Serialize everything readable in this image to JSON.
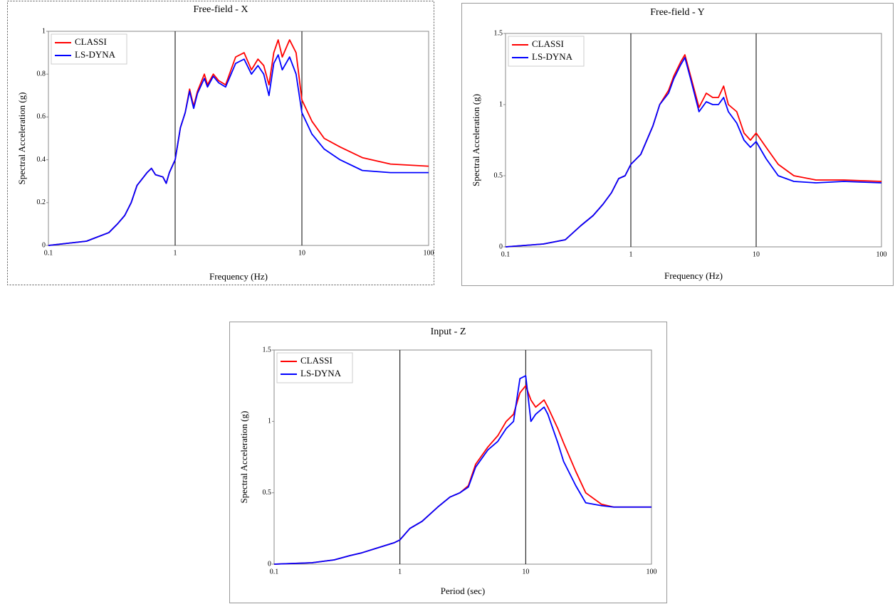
{
  "chart_data": [
    {
      "type": "line",
      "title": "Free-field - X",
      "xlabel": "Frequency (Hz)",
      "ylabel": "Spectral Acceleration (g)",
      "xscale": "log",
      "grid": true,
      "legend": "upper left",
      "xlim": [
        0.1,
        100
      ],
      "xticks": [
        0.1,
        1,
        10,
        100
      ],
      "ylim": [
        0,
        1
      ],
      "yticks": [
        0,
        0.2,
        0.4,
        0.6,
        0.8,
        1
      ],
      "x": [
        0.1,
        0.2,
        0.3,
        0.35,
        0.4,
        0.45,
        0.5,
        0.6,
        0.65,
        0.7,
        0.8,
        0.85,
        0.9,
        1,
        1.1,
        1.2,
        1.3,
        1.4,
        1.5,
        1.7,
        1.8,
        2,
        2.2,
        2.5,
        3,
        3.5,
        4,
        4.5,
        5,
        5.5,
        6,
        6.5,
        7,
        8,
        9,
        10,
        12,
        15,
        20,
        30,
        50,
        100
      ],
      "series": [
        {
          "name": "CLASSI",
          "color": "#ff0000",
          "values": [
            0.0,
            0.02,
            0.06,
            0.1,
            0.14,
            0.2,
            0.28,
            0.34,
            0.36,
            0.33,
            0.32,
            0.29,
            0.34,
            0.4,
            0.55,
            0.62,
            0.73,
            0.65,
            0.72,
            0.8,
            0.75,
            0.8,
            0.77,
            0.75,
            0.88,
            0.9,
            0.82,
            0.87,
            0.84,
            0.75,
            0.9,
            0.96,
            0.88,
            0.96,
            0.9,
            0.68,
            0.58,
            0.5,
            0.46,
            0.41,
            0.38,
            0.37
          ]
        },
        {
          "name": "LS-DYNA",
          "color": "#0000ff",
          "values": [
            0.0,
            0.02,
            0.06,
            0.1,
            0.14,
            0.2,
            0.28,
            0.34,
            0.36,
            0.33,
            0.32,
            0.29,
            0.34,
            0.4,
            0.55,
            0.62,
            0.72,
            0.64,
            0.71,
            0.78,
            0.74,
            0.79,
            0.76,
            0.74,
            0.85,
            0.87,
            0.8,
            0.84,
            0.8,
            0.7,
            0.85,
            0.89,
            0.82,
            0.88,
            0.8,
            0.62,
            0.52,
            0.45,
            0.4,
            0.35,
            0.34,
            0.34
          ]
        }
      ]
    },
    {
      "type": "line",
      "title": "Free-field - Y",
      "xlabel": "Frequency (Hz)",
      "ylabel": "Spectral Acceleration (g)",
      "xscale": "log",
      "grid": true,
      "legend": "upper left",
      "xlim": [
        0.1,
        100
      ],
      "xticks": [
        0.1,
        1,
        10,
        100
      ],
      "ylim": [
        0,
        1.5
      ],
      "yticks": [
        0,
        0.5,
        1,
        1.5
      ],
      "x": [
        0.1,
        0.2,
        0.3,
        0.4,
        0.5,
        0.6,
        0.7,
        0.8,
        0.9,
        1,
        1.2,
        1.5,
        1.7,
        2,
        2.2,
        2.5,
        2.7,
        3,
        3.5,
        4,
        4.5,
        5,
        5.5,
        6,
        7,
        8,
        9,
        10,
        12,
        15,
        20,
        30,
        50,
        100
      ],
      "series": [
        {
          "name": "CLASSI",
          "color": "#ff0000",
          "values": [
            0.0,
            0.02,
            0.05,
            0.15,
            0.22,
            0.3,
            0.38,
            0.48,
            0.5,
            0.58,
            0.65,
            0.85,
            1.0,
            1.1,
            1.2,
            1.3,
            1.35,
            1.2,
            0.98,
            1.08,
            1.05,
            1.05,
            1.13,
            1.0,
            0.95,
            0.8,
            0.75,
            0.8,
            0.7,
            0.58,
            0.5,
            0.47,
            0.47,
            0.46
          ]
        },
        {
          "name": "LS-DYNA",
          "color": "#0000ff",
          "values": [
            0.0,
            0.02,
            0.05,
            0.15,
            0.22,
            0.3,
            0.38,
            0.48,
            0.5,
            0.58,
            0.65,
            0.85,
            1.0,
            1.08,
            1.18,
            1.28,
            1.33,
            1.18,
            0.95,
            1.02,
            1.0,
            1.0,
            1.05,
            0.95,
            0.87,
            0.75,
            0.7,
            0.74,
            0.62,
            0.5,
            0.46,
            0.45,
            0.46,
            0.45
          ]
        }
      ]
    },
    {
      "type": "line",
      "title": "Input - Z",
      "xlabel": "Period (sec)",
      "ylabel": "Spectral Acceleration (g)",
      "xscale": "log",
      "grid": true,
      "legend": "upper left",
      "xlim": [
        0.1,
        100
      ],
      "xticks": [
        0.1,
        1,
        10,
        100
      ],
      "ylim": [
        0,
        1.5
      ],
      "yticks": [
        0,
        0.5,
        1,
        1.5
      ],
      "x": [
        0.1,
        0.2,
        0.3,
        0.4,
        0.5,
        0.7,
        0.9,
        1,
        1.2,
        1.5,
        2,
        2.5,
        3,
        3.5,
        4,
        5,
        6,
        7,
        8,
        9,
        10,
        11,
        12,
        14,
        15,
        18,
        20,
        25,
        30,
        40,
        50,
        100
      ],
      "series": [
        {
          "name": "CLASSI",
          "color": "#ff0000",
          "values": [
            0,
            0.01,
            0.03,
            0.06,
            0.08,
            0.12,
            0.15,
            0.17,
            0.25,
            0.3,
            0.4,
            0.47,
            0.5,
            0.55,
            0.7,
            0.82,
            0.9,
            1.0,
            1.05,
            1.2,
            1.25,
            1.15,
            1.1,
            1.15,
            1.1,
            0.95,
            0.85,
            0.65,
            0.5,
            0.42,
            0.4,
            0.4
          ]
        },
        {
          "name": "LS-DYNA",
          "color": "#0000ff",
          "values": [
            0,
            0.01,
            0.03,
            0.06,
            0.08,
            0.12,
            0.15,
            0.17,
            0.25,
            0.3,
            0.4,
            0.47,
            0.5,
            0.54,
            0.68,
            0.8,
            0.86,
            0.95,
            1.0,
            1.3,
            1.32,
            1.0,
            1.05,
            1.1,
            1.05,
            0.85,
            0.72,
            0.55,
            0.43,
            0.41,
            0.4,
            0.4
          ]
        }
      ]
    }
  ]
}
